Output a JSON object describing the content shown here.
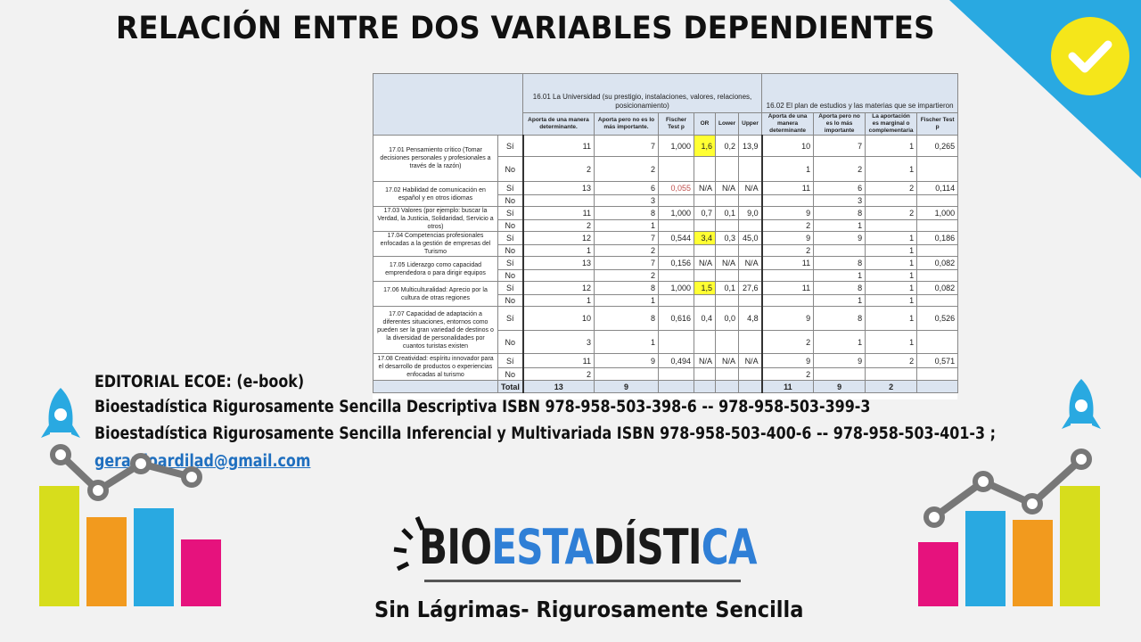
{
  "title": "RELACIÓN ENTRE DOS VARIABLES DEPENDIENTES",
  "table": {
    "group1": "16.01 La Universidad (su prestigio, instalaciones, valores, relaciones, posicionamiento)",
    "group2": "16.02 El plan de estudios y las materias que se impartieron",
    "sub1": [
      "Aporta de una manera determinante.",
      "Aporta pero no es lo más importante.",
      "Fischer Test p",
      "OR",
      "Lower",
      "Upper"
    ],
    "sub2": [
      "Aporta de una manera determinante",
      "Aporta pero no es lo más importante",
      "La aportación es marginal o complementaria",
      "Fischer Test p"
    ],
    "rows": [
      {
        "label": "17.01 Pensamiento crítico (Tomar decisiones personales y profesionales a través de la razón)",
        "si": [
          "11",
          "7",
          "1,000",
          "1,6",
          "0,2",
          "13,9",
          "10",
          "7",
          "1",
          "0,265"
        ],
        "no": [
          "2",
          "2",
          "",
          "",
          "",
          "",
          "1",
          "2",
          "1",
          ""
        ]
      },
      {
        "label": "17.02 Habilidad de comunicación en español y en otros idiomas",
        "si": [
          "13",
          "6",
          "0,055",
          "N/A",
          "N/A",
          "N/A",
          "11",
          "6",
          "2",
          "0,114"
        ],
        "no": [
          "",
          "3",
          "",
          "",
          "",
          "",
          "",
          "3",
          "",
          ""
        ]
      },
      {
        "label": "17.03 Valores (por ejemplo: buscar la Verdad, la Justicia, Solidaridad, Servicio a otros)",
        "si": [
          "11",
          "8",
          "1,000",
          "0,7",
          "0,1",
          "9,0",
          "9",
          "8",
          "2",
          "1,000"
        ],
        "no": [
          "2",
          "1",
          "",
          "",
          "",
          "",
          "2",
          "1",
          "",
          ""
        ]
      },
      {
        "label": "17.04 Competencias profesionales enfocadas a la gestión de empresas del Turismo",
        "si": [
          "12",
          "7",
          "0,544",
          "3,4",
          "0,3",
          "45,0",
          "9",
          "9",
          "1",
          "0,186"
        ],
        "no": [
          "1",
          "2",
          "",
          "",
          "",
          "",
          "2",
          "",
          "1",
          ""
        ]
      },
      {
        "label": "17.05 Liderazgo como capacidad emprendedora o para dirigir equipos",
        "si": [
          "13",
          "7",
          "0,156",
          "N/A",
          "N/A",
          "N/A",
          "11",
          "8",
          "1",
          "0,082"
        ],
        "no": [
          "",
          "2",
          "",
          "",
          "",
          "",
          "",
          "1",
          "1",
          ""
        ]
      },
      {
        "label": "17.06 Multiculturalidad: Aprecio por la cultura de otras regiones",
        "si": [
          "12",
          "8",
          "1,000",
          "1,5",
          "0,1",
          "27,6",
          "11",
          "8",
          "1",
          "0,082"
        ],
        "no": [
          "1",
          "1",
          "",
          "",
          "",
          "",
          "",
          "1",
          "1",
          ""
        ]
      },
      {
        "label": "17.07 Capacidad de adaptación a diferentes situaciones, entornos como pueden ser la gran variedad de destinos o la diversidad de personalidades por cuantos turistas existen",
        "si": [
          "10",
          "8",
          "0,616",
          "0,4",
          "0,0",
          "4,8",
          "9",
          "8",
          "1",
          "0,526"
        ],
        "no": [
          "3",
          "1",
          "",
          "",
          "",
          "",
          "2",
          "1",
          "1",
          ""
        ]
      },
      {
        "label": "17.08 Creatividad: espíritu innovador para el desarrollo de productos o experiencias enfocadas al turismo",
        "si": [
          "11",
          "9",
          "0,494",
          "N/A",
          "N/A",
          "N/A",
          "9",
          "9",
          "2",
          "0,571"
        ],
        "no": [
          "2",
          "",
          "",
          "",
          "",
          "",
          "2",
          "",
          "",
          ""
        ]
      }
    ],
    "si_label": "Sí",
    "no_label": "No",
    "total_label": "Total",
    "total": [
      "13",
      "9",
      "",
      "",
      "",
      "",
      "11",
      "9",
      "2",
      ""
    ]
  },
  "editorial": {
    "line1": "EDITORIAL ECOE: (e-book)",
    "line2": "Bioestadística Rigurosamente Sencilla Descriptiva ISBN  978-958-503-398-6  -- 978-958-503-399-3",
    "line3": "Bioestadística Rigurosamente Sencilla Inferencial y Multivariada ISBN  978-958-503-400-6  -- 978-958-503-401-3  ;",
    "email": "gerardoardilad@gmail.com"
  },
  "logo": {
    "part1": "BIO",
    "part2": "ESTA",
    "part3": "DÍSTI",
    "part4": "CA"
  },
  "slogan": "Sin Lágrimas- Rigurosamente Sencilla",
  "colors": {
    "accent_blue": "#29a9e1",
    "check_yellow": "#f5e61a",
    "highlight": "#ffff33"
  }
}
